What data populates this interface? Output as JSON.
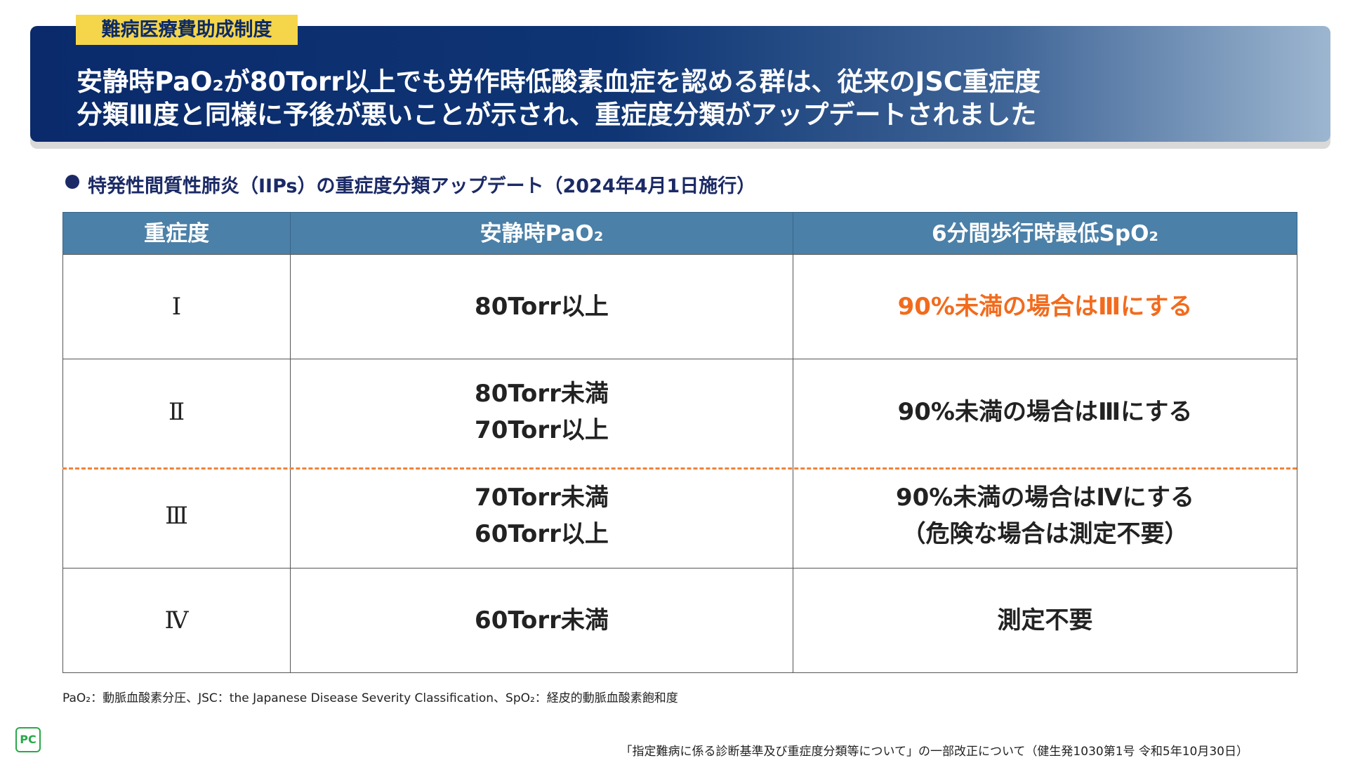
{
  "header": {
    "tag": "難病医療費助成制度",
    "title": [
      "安静時PaO₂が80Torr以上でも労作時低酸素血症を認める群は、従来のJSC重症度",
      "分類Ⅲ度と同様に予後が悪いことが示され、重症度分類がアップデートされました"
    ]
  },
  "section_title": "特発性間質性肺炎（IIPs）の重症度分類アップデート（2024年4月1日施行）",
  "table": {
    "headers": [
      "重症度",
      "安静時PaO₂",
      "6分間歩行時最低SpO₂"
    ],
    "rows": [
      [
        [
          "Ⅰ"
        ],
        [
          "80Torr以上"
        ],
        [
          "90%未満の場合はⅢにする"
        ]
      ],
      [
        [
          "Ⅱ"
        ],
        [
          "80Torr未満",
          "70Torr以上"
        ],
        [
          "90%未満の場合はⅢにする"
        ]
      ],
      [
        [
          "Ⅲ"
        ],
        [
          "70Torr未満",
          "60Torr以上"
        ],
        [
          "90%未満の場合はⅣにする",
          "（危険な場合は測定不要）"
        ]
      ],
      [
        [
          "Ⅳ"
        ],
        [
          "60Torr未満"
        ],
        [
          "測定不要"
        ]
      ]
    ]
  },
  "footnote": "PaO₂：動脈血酸素分圧、JSC：the Japanese Disease Severity Classification、SpO₂：経皮的動脈血酸素飽和度",
  "logo": "PC",
  "source": "「指定難病に係る診断基準及び重症度分類等について」の一部改正について（健生発1030第1号 令和5年10月30日）"
}
